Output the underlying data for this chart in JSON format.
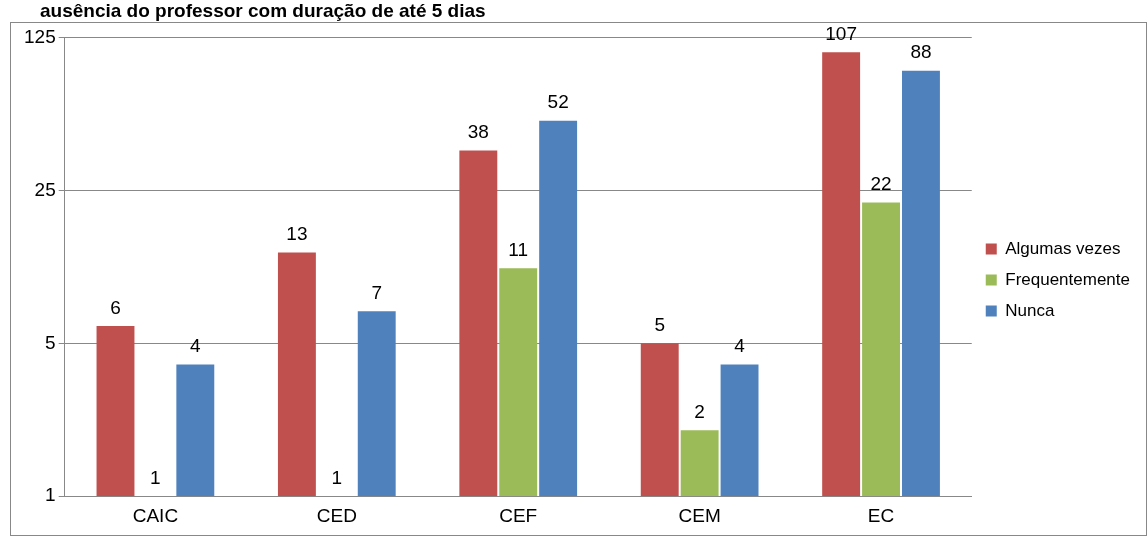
{
  "chart_data": {
    "type": "bar",
    "title": "ausência do professor com duração de até 5 dias",
    "categories": [
      "CAIC",
      "CED",
      "CEF",
      "CEM",
      "EC"
    ],
    "series": [
      {
        "name": "Algumas vezes",
        "color": "#c0504d",
        "values": [
          6,
          13,
          38,
          5,
          107
        ]
      },
      {
        "name": "Frequentemente",
        "color": "#9bbb59",
        "values": [
          1,
          1,
          11,
          2,
          22
        ]
      },
      {
        "name": "Nunca",
        "color": "#4f81bd",
        "values": [
          4,
          7,
          52,
          4,
          88
        ]
      }
    ],
    "log": true,
    "ylim": [
      1,
      125
    ],
    "yticks": [
      1,
      5,
      25,
      125
    ],
    "grid": "y",
    "legend": "right",
    "data_labels": true
  }
}
